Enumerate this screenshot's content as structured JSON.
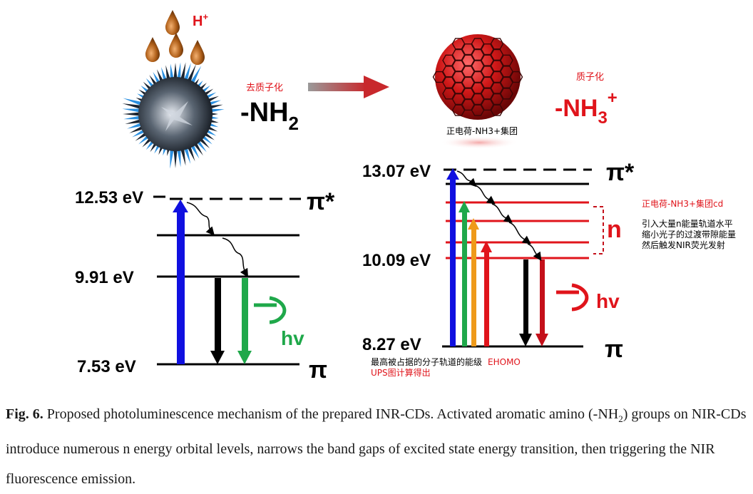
{
  "proton": {
    "label": "H",
    "sup": "+"
  },
  "left": {
    "annotation": "去质子化",
    "group": "-NH",
    "group_sub": "2",
    "levels": [
      {
        "energy": "12.53 eV",
        "state": "π*"
      },
      {
        "energy": "9.91 eV",
        "state": ""
      },
      {
        "energy": "7.53 eV",
        "state": "π"
      }
    ],
    "hv": "hv"
  },
  "right": {
    "annotation_top": "质子化",
    "group": "-NH",
    "group_sub": "3",
    "group_sup": "+",
    "particle_caption": "正电荷-NH3+集团",
    "levels": [
      {
        "energy": "13.07 eV",
        "state": "π*"
      },
      {
        "energy": "10.09 eV",
        "state": ""
      },
      {
        "energy": "8.27 eV",
        "state": "π"
      }
    ],
    "n_label": "n",
    "hv": "hv",
    "note_red": "正电荷-NH3+集团cd",
    "note_lines": [
      "引入大量n能量轨道水平",
      "缩小光子的过渡带隙能量",
      "然后触发NIR荧光发射"
    ],
    "bottom_note_1": "最高被占据的分子轨道的能级",
    "bottom_note_red": "EHOMO",
    "bottom_note_2": "UPS图计算得出"
  },
  "caption": {
    "label": "Fig. 6.",
    "text_a": " Proposed photoluminescence mechanism of the prepared INR-CDs. Activated aromatic amino (-NH",
    "sub": "2",
    "text_b": ") groups on NIR-CDs introduce numerous n energy orbital levels, narrows the band gaps of excited state energy transition, then triggering the NIR fluorescence emission."
  },
  "colors": {
    "red": "#e0141b",
    "dark_red": "#c4101a",
    "blue": "#1010e0",
    "green": "#1fa84a",
    "orange": "#ef9a1a",
    "black": "#000000"
  }
}
